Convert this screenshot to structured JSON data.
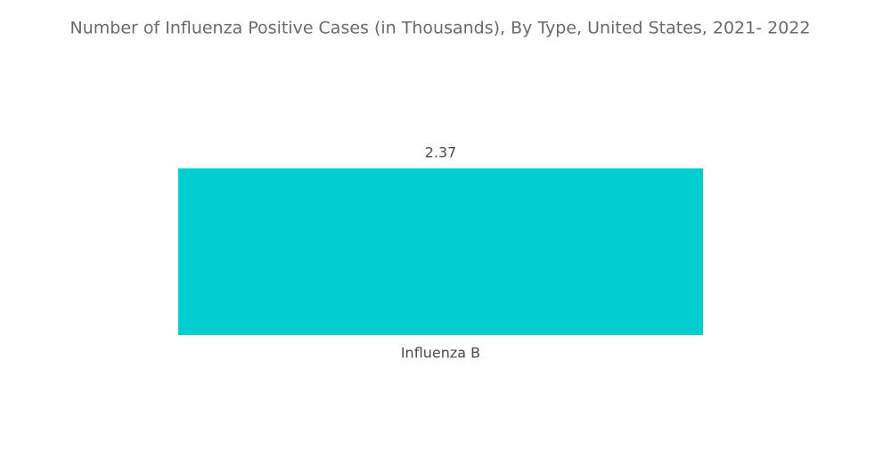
{
  "chart_data": {
    "type": "bar",
    "title": "Number of Influenza Positive Cases (in Thousands), By Type, United States, 2021- 2022",
    "categories": [
      "Influenza B"
    ],
    "values": [
      2.37
    ],
    "color": "#00ced1"
  }
}
